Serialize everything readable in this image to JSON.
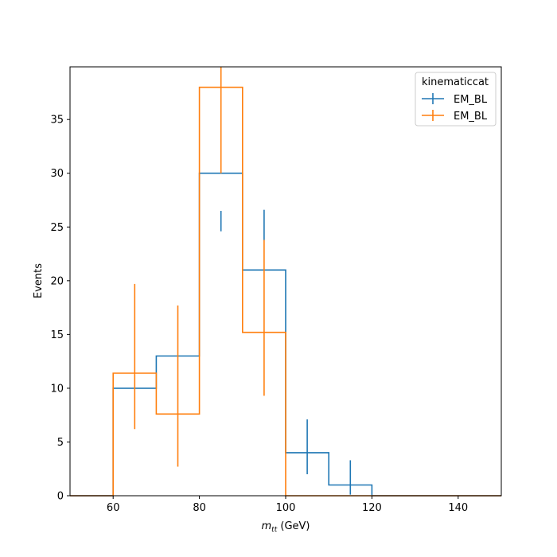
{
  "chart_data": {
    "type": "step-histogram",
    "xlabel_main": "m",
    "xlabel_sub": "tt",
    "xlabel_unit": " (GeV)",
    "ylabel": "Events",
    "xlim": [
      50,
      150
    ],
    "ylim": [
      0,
      39.9
    ],
    "xticks": [
      60,
      80,
      100,
      120,
      140
    ],
    "yticks": [
      0,
      5,
      10,
      15,
      20,
      25,
      30,
      35
    ],
    "legend": {
      "title": "kinematiccat",
      "position": "top-right"
    },
    "bin_edges": [
      50,
      60,
      70,
      80,
      90,
      100,
      110,
      120,
      130,
      140,
      150
    ],
    "series": [
      {
        "name": "EM_BL",
        "color": "#1f77b4",
        "values": [
          0,
          10,
          13,
          30,
          21,
          4,
          1,
          0,
          0,
          0
        ],
        "errors": [
          null,
          null,
          null,
          [
            24.6,
            26.5
          ],
          [
            23.8,
            26.6
          ],
          [
            2.0,
            7.1
          ],
          [
            0.1,
            3.3
          ],
          null,
          null,
          null
        ]
      },
      {
        "name": "EM_BL",
        "color": "#ff7f0e",
        "values": [
          0,
          11.4,
          7.6,
          38,
          15.2,
          0,
          0,
          0,
          0,
          0
        ],
        "errors": [
          null,
          [
            6.2,
            19.7
          ],
          [
            2.7,
            17.7
          ],
          [
            30,
            39.9
          ],
          [
            9.3,
            23.8
          ],
          null,
          null,
          null,
          null,
          null
        ]
      }
    ]
  }
}
